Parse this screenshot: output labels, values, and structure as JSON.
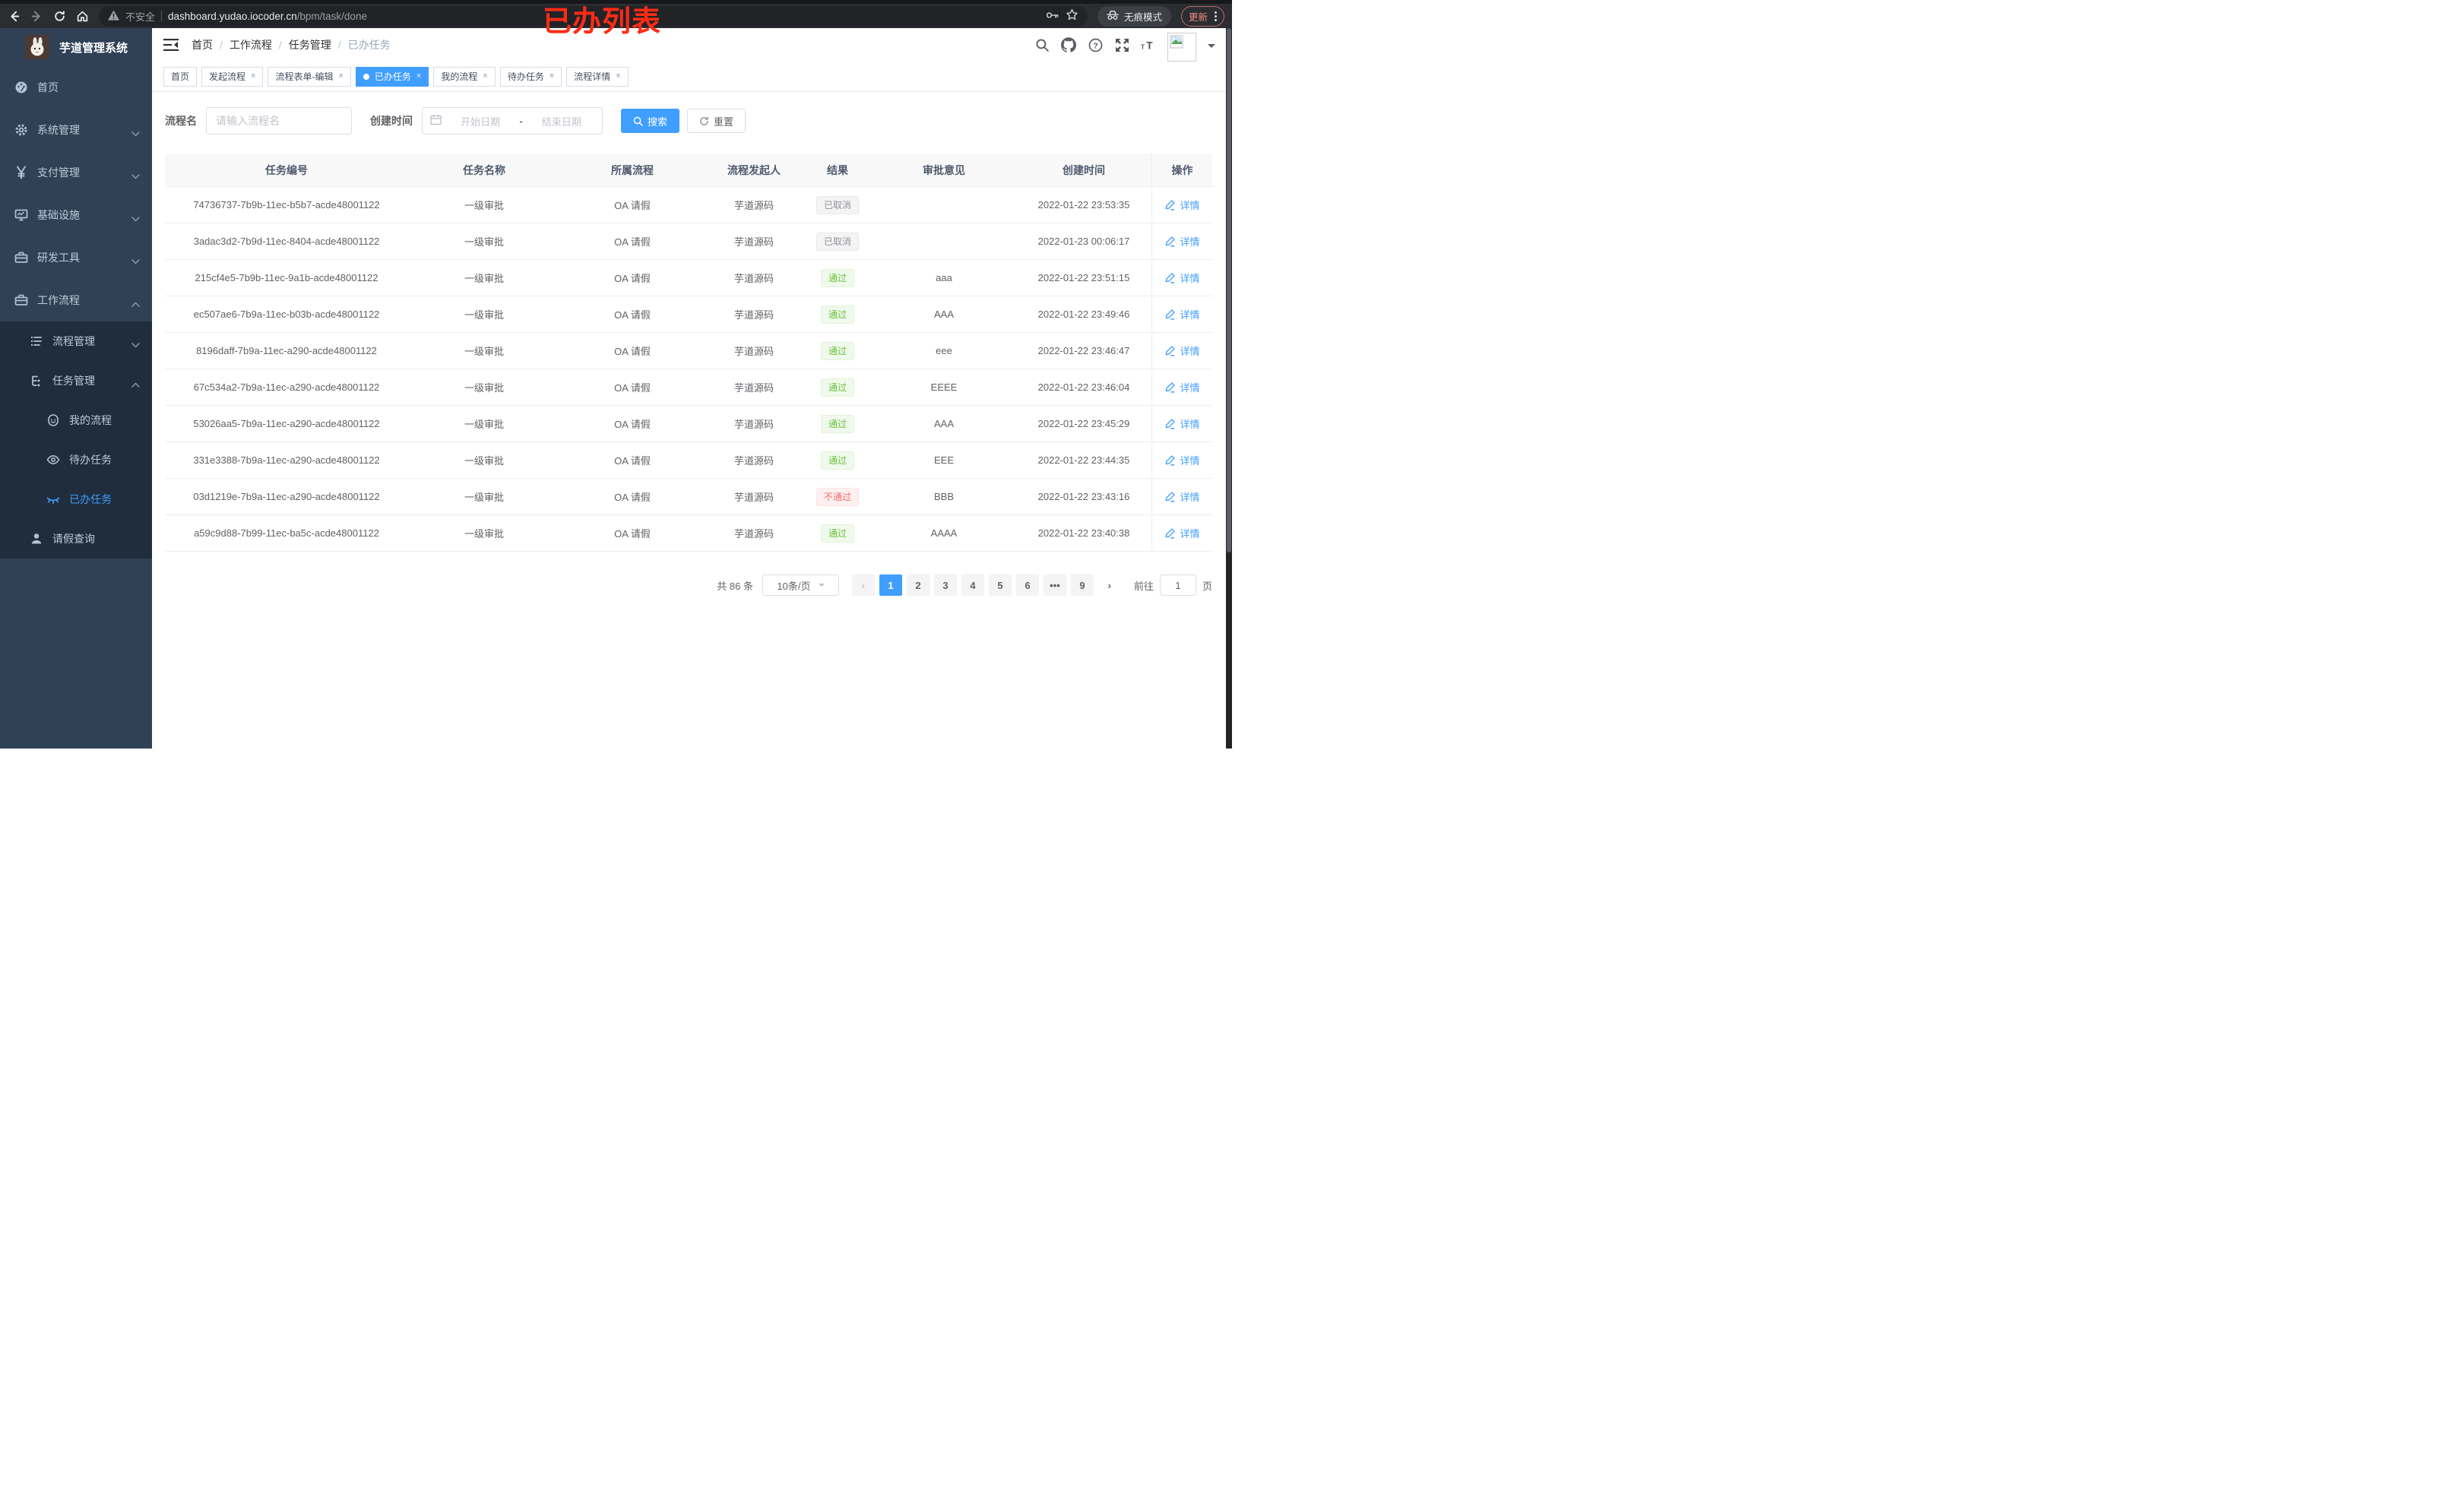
{
  "colors": {
    "accent": "#409eff",
    "success": "#67c23a",
    "danger": "#f56c6c",
    "info": "#909399",
    "sidebar_bg": "#304156",
    "submenu_bg": "#1f2d3d",
    "annotation_red": "#fe2b15",
    "chrome_update": "#f28b82"
  },
  "browser": {
    "security_label": "不安全",
    "url_host": "dashboard.yudao.iocoder.cn",
    "url_path": "/bpm/task/done",
    "incognito_label": "无痕模式",
    "update_label": "更新"
  },
  "annotation": {
    "text": "已办列表"
  },
  "sidebar": {
    "app_title": "芋道管理系统",
    "menu": [
      {
        "label": "首页",
        "icon": "dashboard-icon",
        "level": 1,
        "chevron": null
      },
      {
        "label": "系统管理",
        "icon": "gear-icon",
        "level": 1,
        "chevron": "down"
      },
      {
        "label": "支付管理",
        "icon": "yen-icon",
        "level": 1,
        "chevron": "down"
      },
      {
        "label": "基础设施",
        "icon": "monitor-icon",
        "level": 1,
        "chevron": "down"
      },
      {
        "label": "研发工具",
        "icon": "toolbox-icon",
        "level": 1,
        "chevron": "down"
      },
      {
        "label": "工作流程",
        "icon": "toolbox-icon",
        "level": 1,
        "chevron": "up"
      }
    ],
    "submenu": [
      {
        "label": "流程管理",
        "icon": "list-icon",
        "level": 2,
        "chevron": "down",
        "active": false
      },
      {
        "label": "任务管理",
        "icon": "tree-icon",
        "level": 2,
        "chevron": "up",
        "active": false
      },
      {
        "label": "我的流程",
        "icon": "face-icon",
        "level": 3,
        "chevron": null,
        "active": false
      },
      {
        "label": "待办任务",
        "icon": "eye-icon",
        "level": 3,
        "chevron": null,
        "active": false
      },
      {
        "label": "已办任务",
        "icon": "eye-closed-icon",
        "level": 3,
        "chevron": null,
        "active": true
      },
      {
        "label": "请假查询",
        "icon": "user-icon",
        "level": 2,
        "chevron": null,
        "active": false
      }
    ]
  },
  "breadcrumb": [
    "首页",
    "工作流程",
    "任务管理",
    "已办任务"
  ],
  "tabs": [
    {
      "label": "首页",
      "closable": false,
      "active": false
    },
    {
      "label": "发起流程",
      "closable": true,
      "active": false
    },
    {
      "label": "流程表单-编辑",
      "closable": true,
      "active": false
    },
    {
      "label": "已办任务",
      "closable": true,
      "active": true
    },
    {
      "label": "我的流程",
      "closable": true,
      "active": false
    },
    {
      "label": "待办任务",
      "closable": true,
      "active": false
    },
    {
      "label": "流程详情",
      "closable": true,
      "active": false
    }
  ],
  "filters": {
    "name_label": "流程名",
    "name_placeholder": "请输入流程名",
    "date_label": "创建时间",
    "date_start_placeholder": "开始日期",
    "date_separator": "-",
    "date_end_placeholder": "结束日期",
    "search_label": "搜索",
    "reset_label": "重置"
  },
  "table": {
    "columns": [
      "任务编号",
      "任务名称",
      "所属流程",
      "流程发起人",
      "结果",
      "审批意见",
      "创建时间",
      "操作"
    ],
    "action_label": "详情",
    "rows": [
      {
        "id": "74736737-7b9b-11ec-b5b7-acde48001122",
        "name": "一级审批",
        "process": "OA 请假",
        "starter": "芋道源码",
        "result": {
          "label": "已取消",
          "type": "info"
        },
        "comment": "",
        "created": "2022-01-22 23:53:35"
      },
      {
        "id": "3adac3d2-7b9d-11ec-8404-acde48001122",
        "name": "一级审批",
        "process": "OA 请假",
        "starter": "芋道源码",
        "result": {
          "label": "已取消",
          "type": "info"
        },
        "comment": "",
        "created": "2022-01-23 00:06:17"
      },
      {
        "id": "215cf4e5-7b9b-11ec-9a1b-acde48001122",
        "name": "一级审批",
        "process": "OA 请假",
        "starter": "芋道源码",
        "result": {
          "label": "通过",
          "type": "success"
        },
        "comment": "aaa",
        "created": "2022-01-22 23:51:15"
      },
      {
        "id": "ec507ae6-7b9a-11ec-b03b-acde48001122",
        "name": "一级审批",
        "process": "OA 请假",
        "starter": "芋道源码",
        "result": {
          "label": "通过",
          "type": "success"
        },
        "comment": "AAA",
        "created": "2022-01-22 23:49:46"
      },
      {
        "id": "8196daff-7b9a-11ec-a290-acde48001122",
        "name": "一级审批",
        "process": "OA 请假",
        "starter": "芋道源码",
        "result": {
          "label": "通过",
          "type": "success"
        },
        "comment": "eee",
        "created": "2022-01-22 23:46:47"
      },
      {
        "id": "67c534a2-7b9a-11ec-a290-acde48001122",
        "name": "一级审批",
        "process": "OA 请假",
        "starter": "芋道源码",
        "result": {
          "label": "通过",
          "type": "success"
        },
        "comment": "EEEE",
        "created": "2022-01-22 23:46:04"
      },
      {
        "id": "53026aa5-7b9a-11ec-a290-acde48001122",
        "name": "一级审批",
        "process": "OA 请假",
        "starter": "芋道源码",
        "result": {
          "label": "通过",
          "type": "success"
        },
        "comment": "AAA",
        "created": "2022-01-22 23:45:29"
      },
      {
        "id": "331e3388-7b9a-11ec-a290-acde48001122",
        "name": "一级审批",
        "process": "OA 请假",
        "starter": "芋道源码",
        "result": {
          "label": "通过",
          "type": "success"
        },
        "comment": "EEE",
        "created": "2022-01-22 23:44:35"
      },
      {
        "id": "03d1219e-7b9a-11ec-a290-acde48001122",
        "name": "一级审批",
        "process": "OA 请假",
        "starter": "芋道源码",
        "result": {
          "label": "不通过",
          "type": "danger"
        },
        "comment": "BBB",
        "created": "2022-01-22 23:43:16"
      },
      {
        "id": "a59c9d88-7b99-11ec-ba5c-acde48001122",
        "name": "一级审批",
        "process": "OA 请假",
        "starter": "芋道源码",
        "result": {
          "label": "通过",
          "type": "success"
        },
        "comment": "AAAA",
        "created": "2022-01-22 23:40:38"
      }
    ]
  },
  "pagination": {
    "total_label": "共 86 条",
    "size_label": "10条/页",
    "items": [
      {
        "type": "prev",
        "label": "‹"
      },
      {
        "type": "page",
        "label": "1",
        "active": true
      },
      {
        "type": "page",
        "label": "2",
        "active": false
      },
      {
        "type": "page",
        "label": "3",
        "active": false
      },
      {
        "type": "page",
        "label": "4",
        "active": false
      },
      {
        "type": "page",
        "label": "5",
        "active": false
      },
      {
        "type": "page",
        "label": "6",
        "active": false
      },
      {
        "type": "ellipsis",
        "label": "•••"
      },
      {
        "type": "page",
        "label": "9",
        "active": false
      },
      {
        "type": "next",
        "label": "›"
      }
    ],
    "goto_label": "前往",
    "goto_value": "1",
    "goto_unit": "页"
  }
}
